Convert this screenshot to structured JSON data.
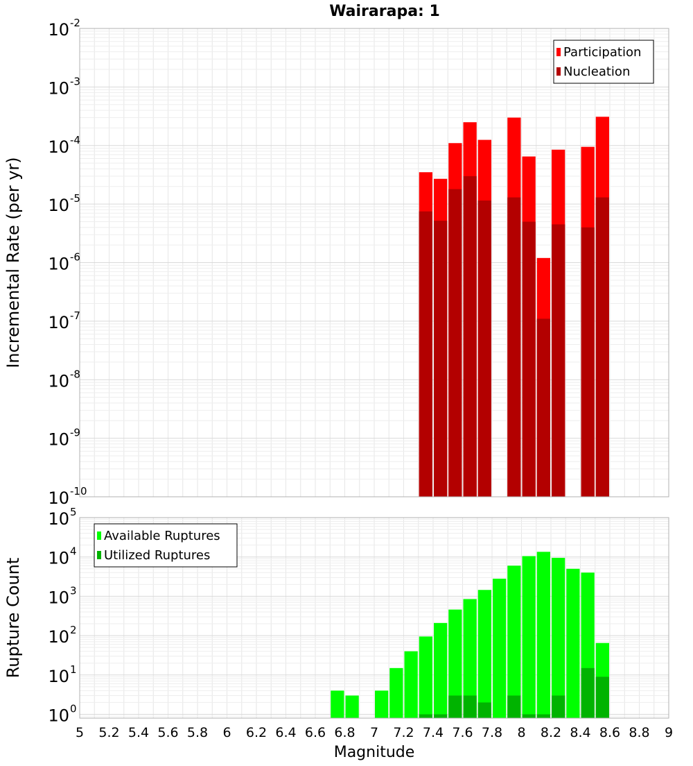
{
  "chart_data": [
    {
      "type": "bar",
      "title": "Wairarapa: 1",
      "ylabel": "Incremental Rate (per yr)",
      "xlabel": "",
      "y_scale": "log",
      "ylim": [
        1e-10,
        0.01
      ],
      "y_ticks": [
        {
          "base": "10",
          "exp": "-2"
        },
        {
          "base": "10",
          "exp": "-3"
        },
        {
          "base": "10",
          "exp": "-4"
        },
        {
          "base": "10",
          "exp": "-5"
        },
        {
          "base": "10",
          "exp": "-6"
        },
        {
          "base": "10",
          "exp": "-7"
        },
        {
          "base": "10",
          "exp": "-8"
        },
        {
          "base": "10",
          "exp": "-9"
        },
        {
          "base": "10",
          "exp": "-10"
        }
      ],
      "xlim": [
        5,
        9
      ],
      "bar_width": 0.1,
      "grid": true,
      "legend_position": "top-right",
      "series": [
        {
          "name": "Participation",
          "color": "#ff0000",
          "x": [
            7.35,
            7.45,
            7.55,
            7.65,
            7.75,
            7.95,
            8.05,
            8.15,
            8.25,
            8.45,
            8.55
          ],
          "values": [
            3.5e-05,
            2.7e-05,
            0.00011,
            0.00025,
            0.000125,
            0.0003,
            6.5e-05,
            1.2e-06,
            8.5e-05,
            9.5e-05,
            0.00031
          ]
        },
        {
          "name": "Nucleation",
          "color": "#b30000",
          "x": [
            7.35,
            7.45,
            7.55,
            7.65,
            7.75,
            7.95,
            8.05,
            8.15,
            8.25,
            8.45,
            8.55
          ],
          "values": [
            7.5e-06,
            5.2e-06,
            1.8e-05,
            3e-05,
            1.15e-05,
            1.3e-05,
            5e-06,
            1.1e-07,
            4.5e-06,
            4e-06,
            1.3e-05
          ]
        }
      ]
    },
    {
      "type": "bar",
      "title": "",
      "ylabel": "Rupture Count",
      "xlabel": "Magnitude",
      "y_scale": "log",
      "ylim": [
        0.8,
        100000
      ],
      "y_ticks": [
        {
          "base": "10",
          "exp": "5"
        },
        {
          "base": "10",
          "exp": "4"
        },
        {
          "base": "10",
          "exp": "3"
        },
        {
          "base": "10",
          "exp": "2"
        },
        {
          "base": "10",
          "exp": "1"
        },
        {
          "base": "10",
          "exp": "0"
        }
      ],
      "xlim": [
        5,
        9
      ],
      "x_ticks": [
        "5",
        "5.2",
        "5.4",
        "5.6",
        "5.8",
        "6",
        "6.2",
        "6.4",
        "6.6",
        "6.8",
        "7",
        "7.2",
        "7.4",
        "7.6",
        "7.8",
        "8",
        "8.2",
        "8.4",
        "8.6",
        "8.8",
        "9"
      ],
      "bar_width": 0.1,
      "grid": true,
      "legend_position": "top-left",
      "series": [
        {
          "name": "Available Ruptures",
          "color": "#00ff00",
          "x": [
            6.75,
            6.85,
            7.05,
            7.15,
            7.25,
            7.35,
            7.45,
            7.55,
            7.65,
            7.75,
            7.85,
            7.95,
            8.05,
            8.15,
            8.25,
            8.35,
            8.45,
            8.55
          ],
          "values": [
            4,
            3,
            4,
            15,
            40,
            95,
            210,
            460,
            850,
            1450,
            2800,
            6000,
            10500,
            13500,
            9500,
            5000,
            4000,
            65
          ]
        },
        {
          "name": "Utilized Ruptures",
          "color": "#00b300",
          "x": [
            7.35,
            7.45,
            7.55,
            7.65,
            7.75,
            7.95,
            8.05,
            8.15,
            8.25,
            8.45,
            8.55
          ],
          "values": [
            1,
            1,
            3,
            3,
            2,
            3,
            1,
            1,
            3,
            15,
            9
          ]
        }
      ]
    }
  ]
}
